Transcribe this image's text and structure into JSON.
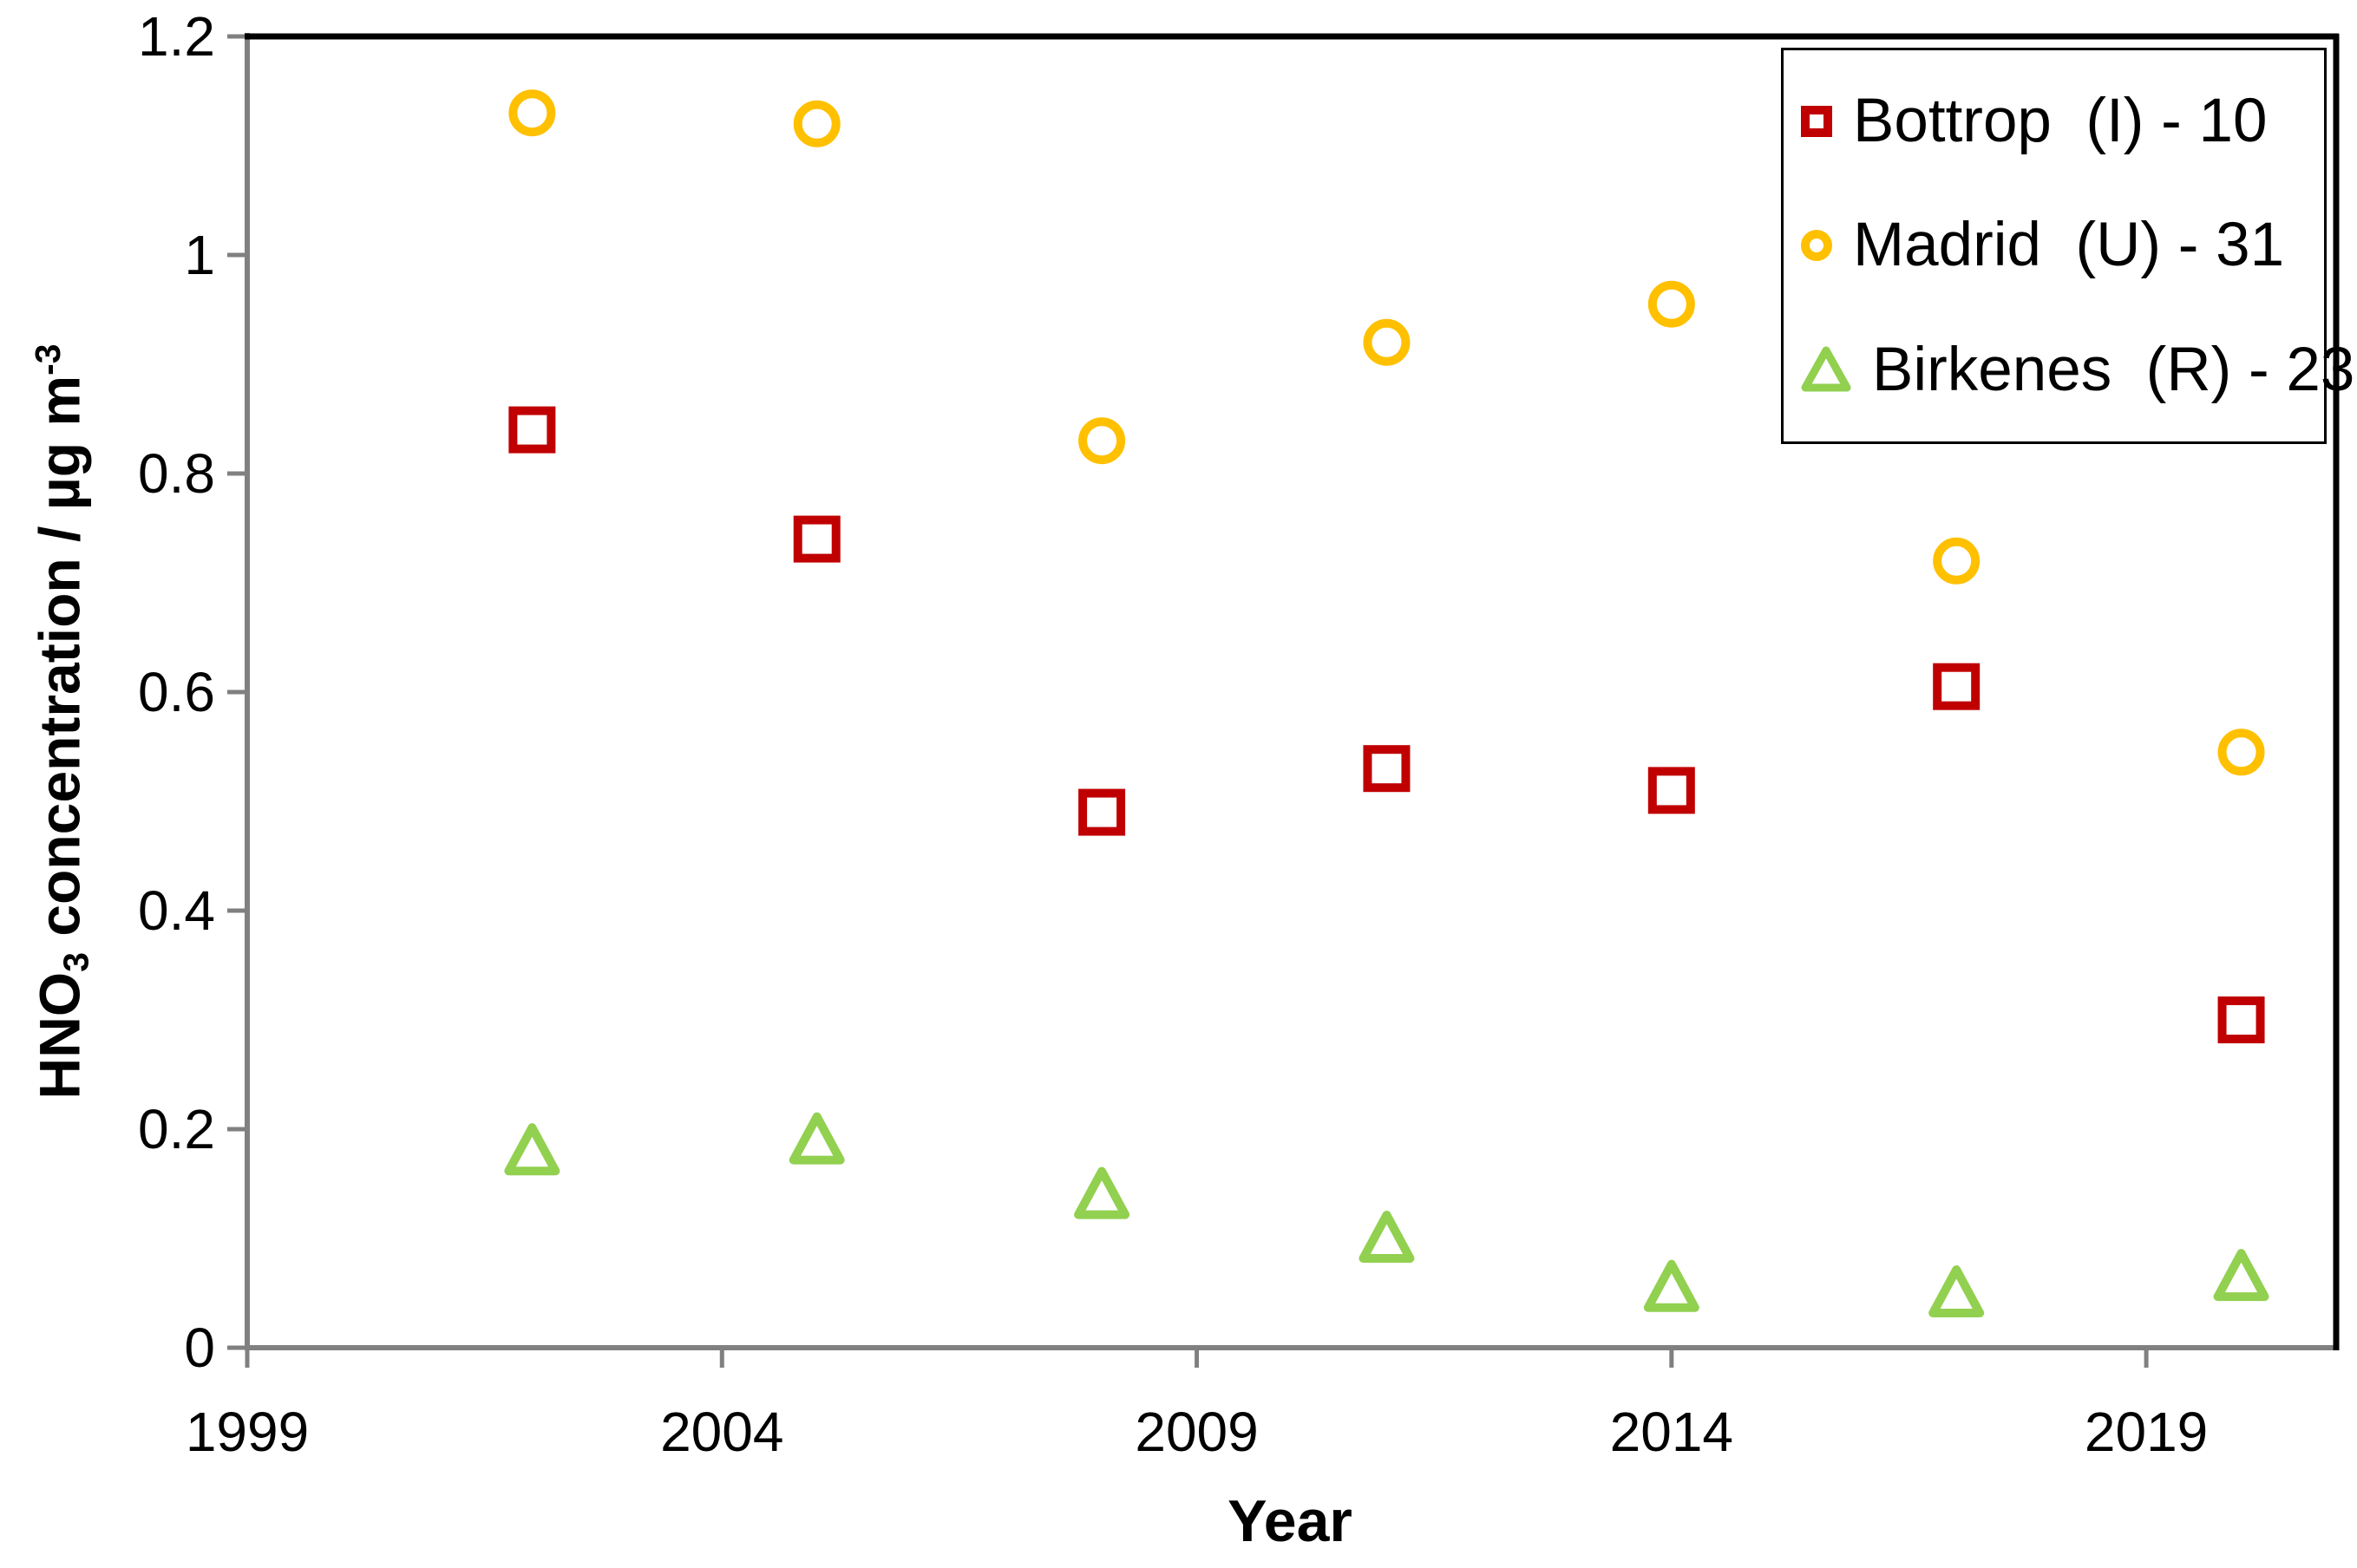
{
  "chart_data": {
    "type": "scatter",
    "title": "",
    "xlabel": "Year",
    "ylabel": "HNO3 concentration / µg m-3",
    "ylabel_parts": {
      "pre": "HNO",
      "sub": "3",
      "mid": " concentration / µg m",
      "sup": "-3"
    },
    "x": [
      2002,
      2005,
      2008,
      2011,
      2014,
      2017,
      2020
    ],
    "series": [
      {
        "name": "Bottrop  (I) - 10",
        "marker": "square",
        "color": "#C00000",
        "values": [
          0.84,
          0.74,
          0.49,
          0.53,
          0.51,
          0.605,
          0.3
        ]
      },
      {
        "name": "Madrid  (U) - 31",
        "marker": "circle",
        "color": "#FFC000",
        "values": [
          1.13,
          1.12,
          0.83,
          0.92,
          0.955,
          0.72,
          0.545
        ]
      },
      {
        "name": "Birkenes  (R) - 23",
        "marker": "triangle",
        "color": "#92D050",
        "values": [
          0.18,
          0.19,
          0.14,
          0.1,
          0.055,
          0.05,
          0.065
        ]
      }
    ],
    "xlim": [
      1999,
      2021
    ],
    "ylim": [
      0,
      1.2
    ],
    "x_ticks": [
      1999,
      2004,
      2009,
      2014,
      2019
    ],
    "y_ticks": [
      0,
      0.2,
      0.4,
      0.6,
      0.8,
      1,
      1.2
    ],
    "y_tick_labels": [
      "0",
      "0.2",
      "0.4",
      "0.6",
      "0.8",
      "1",
      "1.2"
    ],
    "grid": false,
    "legend_position": "top-right",
    "axis_color": "#808080",
    "border_color": "#000000"
  }
}
